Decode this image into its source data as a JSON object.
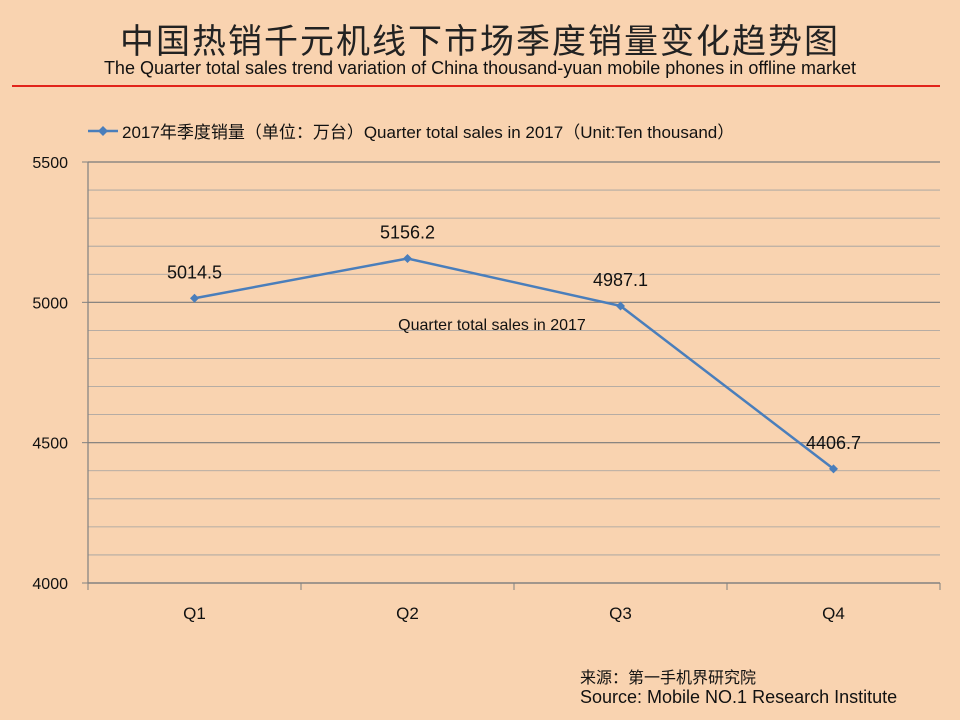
{
  "title_cn": "中国热销千元机线下市场季度销量变化趋势图",
  "title_en": "The Quarter total sales trend variation of China thousand-yuan mobile phones in offline market",
  "accent_line_color": "#e2231a",
  "source_cn": "来源：第一手机界研究院",
  "source_en": "Source: Mobile NO.1 Research Institute",
  "chart_data": {
    "type": "line",
    "categories": [
      "Q1",
      "Q2",
      "Q3",
      "Q4"
    ],
    "series": [
      {
        "name": "2017年季度销量（单位：万台）Quarter total sales in 2017（Unit:Ten thousand）",
        "values": [
          5014.5,
          5156.2,
          4987.1,
          4406.7
        ],
        "color": "#4a7ebb"
      }
    ],
    "annotation": "Quarter total sales in 2017",
    "ylim": [
      4000,
      5500
    ],
    "yticks": [
      "5500",
      "5000",
      "4500",
      "4000"
    ],
    "ytick_values": [
      5500,
      5000,
      4500,
      4000
    ],
    "minor_step": 100,
    "grid": true,
    "legend_position": "top",
    "xlabel": "",
    "ylabel": ""
  }
}
